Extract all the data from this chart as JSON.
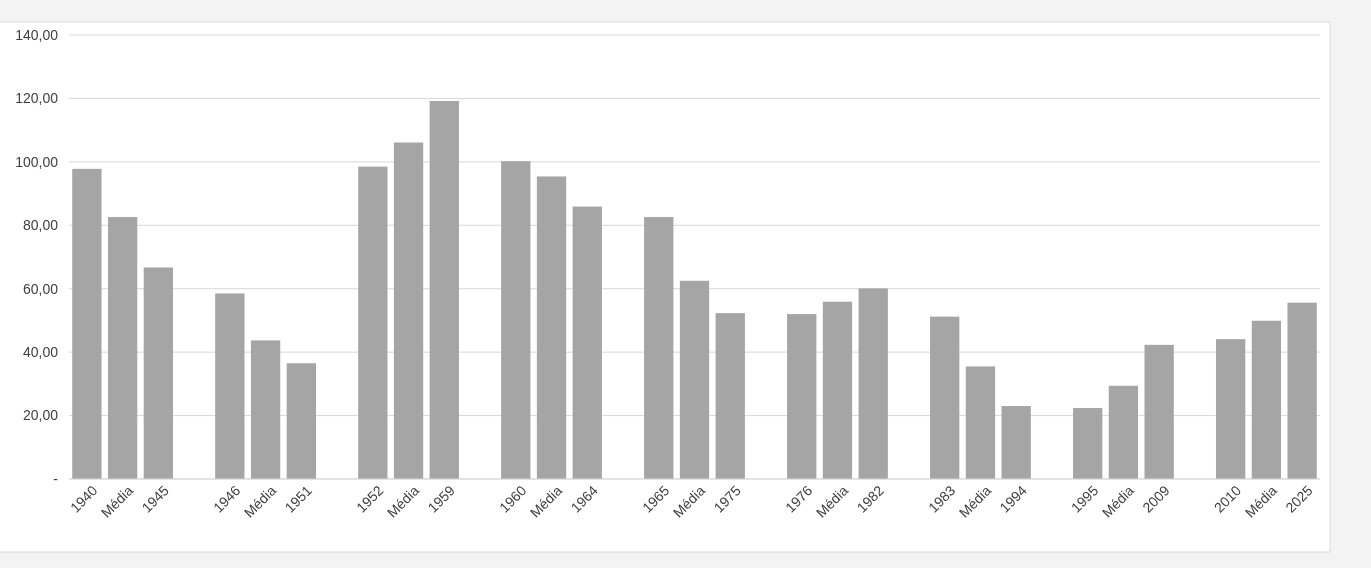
{
  "chart_data": {
    "type": "bar",
    "categories": [
      "1940",
      "Média",
      "1945",
      null,
      "1946",
      "Média",
      "1951",
      null,
      "1952",
      "Média",
      "1959",
      null,
      "1960",
      "Média",
      "1964",
      null,
      "1965",
      "Média",
      "1975",
      null,
      "1976",
      "Média",
      "1982",
      null,
      "1983",
      "Média",
      "1994",
      null,
      "1995",
      "Média",
      "2009",
      null,
      "2010",
      "Média",
      "2025"
    ],
    "values": [
      97.8,
      82.6,
      66.7,
      null,
      58.5,
      43.7,
      36.5,
      null,
      98.5,
      106.1,
      119.2,
      null,
      100.2,
      95.4,
      85.9,
      null,
      82.6,
      62.5,
      52.3,
      null,
      52.0,
      55.9,
      60.1,
      null,
      51.2,
      35.5,
      23.0,
      null,
      22.4,
      29.4,
      42.3,
      null,
      44.1,
      49.9,
      55.6
    ],
    "color": "#a5a5a5",
    "ylim": [
      0,
      140
    ],
    "yticks": [
      {
        "value": 0,
        "label": "-"
      },
      {
        "value": 20,
        "label": "20,00"
      },
      {
        "value": 40,
        "label": "40,00"
      },
      {
        "value": 60,
        "label": "60,00"
      },
      {
        "value": 80,
        "label": "80,00"
      },
      {
        "value": 100,
        "label": "100,00"
      },
      {
        "value": 120,
        "label": "120,00"
      },
      {
        "value": 140,
        "label": "140,00"
      }
    ],
    "grid": "y"
  }
}
